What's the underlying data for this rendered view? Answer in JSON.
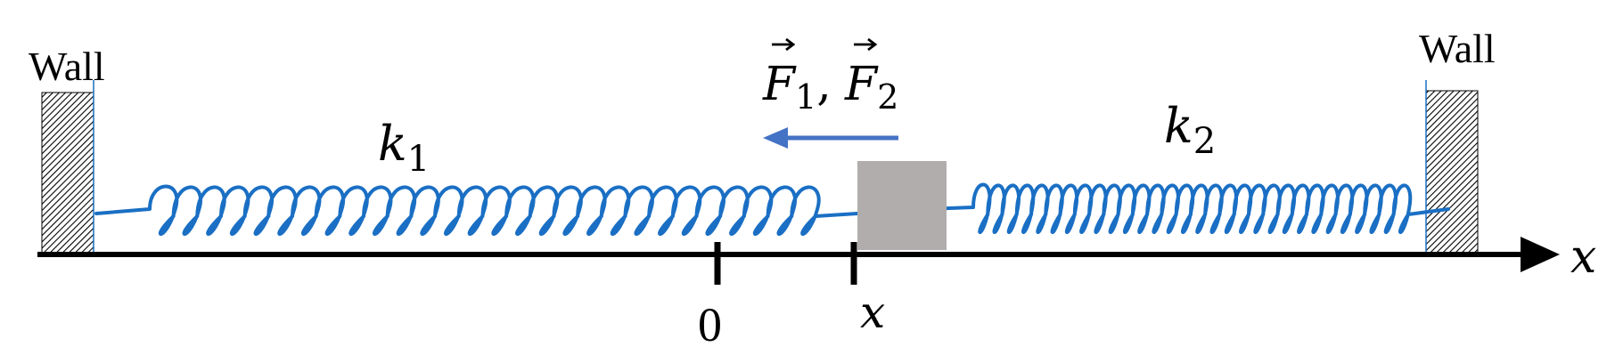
{
  "walls": {
    "left_label": "Wall",
    "right_label": "Wall"
  },
  "springs": {
    "left": {
      "symbol": "k",
      "subscript": "1"
    },
    "right": {
      "symbol": "k",
      "subscript": "2"
    }
  },
  "force": {
    "f1_symbol": "F",
    "f1_sub": "1",
    "separator": ",",
    "f2_symbol": "F",
    "f2_sub": "2",
    "direction": "left"
  },
  "axis": {
    "label": "x",
    "origin_label": "0",
    "position_label": "x"
  },
  "colors": {
    "spring": "#1a6fc4",
    "arrow": "#4472c4",
    "block": "#b0adac",
    "axis": "#000000",
    "wall_hatch": "#000000"
  }
}
